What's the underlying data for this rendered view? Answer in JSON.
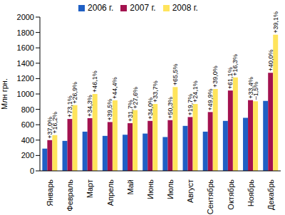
{
  "chart_data": {
    "type": "bar",
    "y_label": "Млн грн.",
    "categories": [
      "Январь",
      "Февраль",
      "Март",
      "Апрель",
      "Май",
      "Июнь",
      "Июль",
      "Август",
      "Сентябрь",
      "Октябрь",
      "Ноябрь",
      "Декабрь"
    ],
    "series": [
      {
        "name": "2006 г.",
        "color": "#1f5fc4",
        "values": [
          290,
          390,
          510,
          455,
          470,
          485,
          440,
          585,
          510,
          650,
          690,
          910
        ]
      },
      {
        "name": "2007 г.",
        "color": "#a3124f",
        "values": [
          400,
          675,
          685,
          635,
          620,
          650,
          660,
          700,
          765,
          1045,
          920,
          1275
        ],
        "annotations": [
          "+37,0%",
          "+73,1%",
          "+34,3%",
          "+39,5%",
          "+31,7%",
          "+34,0%",
          "+50,3%",
          "+19,7%",
          "+49,9%",
          "+61,1%",
          "+33,4%",
          "+40,0%"
        ]
      },
      {
        "name": "2008 г.",
        "color": "#ffe45c",
        "values": [
          465,
          855,
          1000,
          917,
          790,
          870,
          1090,
          870,
          1065,
          1215,
          905,
          1770
        ],
        "annotations": [
          "+16,2%",
          "+26,9%",
          "+46,1%",
          "+44,4%",
          "+27,6%",
          "+33,7%",
          "+65,5%",
          "+24,1%",
          "+39,0%",
          "+16,3%",
          "–1,5%",
          "+39,1%"
        ]
      }
    ],
    "ylim": [
      0,
      2000
    ],
    "yticks": [
      0,
      200,
      400,
      600,
      800,
      1000,
      1200,
      1400,
      1600,
      1800,
      2000
    ],
    "grid": false,
    "legend": "top"
  }
}
